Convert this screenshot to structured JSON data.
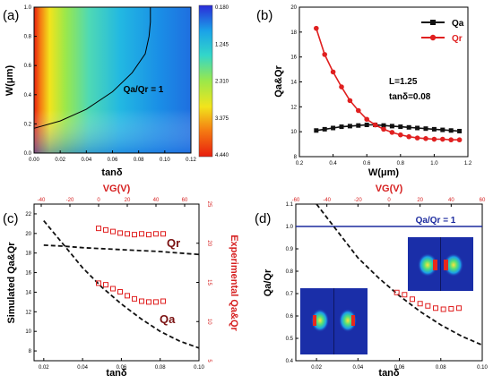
{
  "chart_data": [
    {
      "panel": "(a)",
      "type": "heatmap",
      "xlabel": "tanδ",
      "ylabel": "W(μm)",
      "xlim": [
        0.0,
        0.12
      ],
      "ylim": [
        0.0,
        1.0
      ],
      "xticks": [
        "0.00",
        "0.02",
        "0.04",
        "0.06",
        "0.08",
        "0.10",
        "0.12"
      ],
      "yticks": [
        "0.0",
        "0.2",
        "0.4",
        "0.6",
        "0.8",
        "1.0"
      ],
      "colorbar": {
        "values": [
          "0.180",
          "1.245",
          "2.310",
          "3.375",
          "4.440"
        ],
        "colors": [
          "#2b2bd8",
          "#1aa3e8",
          "#33d6c9",
          "#9be84a",
          "#f2e41c",
          "#f47a12",
          "#e81e0e"
        ]
      },
      "contour": {
        "label": "Qa/Qr = 1",
        "x": [
          0.0,
          0.02,
          0.04,
          0.06,
          0.075,
          0.085,
          0.088,
          0.089,
          0.089
        ],
        "y": [
          0.17,
          0.22,
          0.3,
          0.42,
          0.55,
          0.68,
          0.8,
          0.9,
          1.0
        ]
      },
      "colors": {
        "ui_page_c4": "#ffffff"
      }
    },
    {
      "panel": "(b)",
      "type": "line",
      "xlabel": "W(μm)",
      "ylabel": "Qa&Qr",
      "xlim": [
        0.2,
        1.2
      ],
      "ylim": [
        8,
        20
      ],
      "xticks": [
        "0.2",
        "0.4",
        "0.6",
        "0.8",
        "1.0",
        "1.2"
      ],
      "yticks": [
        "8",
        "10",
        "12",
        "14",
        "16",
        "18",
        "20"
      ],
      "legend_position": "top-right",
      "annotation_l": "L=1.25",
      "annotation_tan": "tanδ=0.08",
      "x": [
        0.3,
        0.35,
        0.4,
        0.45,
        0.5,
        0.55,
        0.6,
        0.65,
        0.7,
        0.75,
        0.8,
        0.85,
        0.9,
        0.95,
        1.0,
        1.05,
        1.1,
        1.15
      ],
      "series": [
        {
          "name": "Qa",
          "color": "#111111",
          "values": [
            10.1,
            10.2,
            10.3,
            10.4,
            10.45,
            10.5,
            10.55,
            10.55,
            10.5,
            10.45,
            10.4,
            10.35,
            10.3,
            10.25,
            10.2,
            10.15,
            10.1,
            10.05
          ]
        },
        {
          "name": "Qr",
          "color": "#e02020",
          "values": [
            18.3,
            16.2,
            14.8,
            13.6,
            12.5,
            11.7,
            11.0,
            10.55,
            10.2,
            9.95,
            9.75,
            9.6,
            9.5,
            9.45,
            9.4,
            9.4,
            9.35,
            9.35
          ]
        }
      ]
    },
    {
      "panel": "(c)",
      "type": "scatter",
      "xlabel": "tanδ",
      "ylabel": "Simulated Qa&Qr",
      "ylabel_right": "Experimental Qa&Qr",
      "top_xlabel": "VG(V)",
      "xlim": [
        0.015,
        0.1
      ],
      "ylim": [
        7,
        23
      ],
      "ylim_right": [
        5,
        25
      ],
      "top_xlim": [
        -45,
        70
      ],
      "xticks": [
        "0.02",
        "0.04",
        "0.06",
        "0.08",
        "0.10"
      ],
      "yticks": [
        "8",
        "10",
        "12",
        "14",
        "16",
        "18",
        "20",
        "22"
      ],
      "yticks_right": [
        "5",
        "10",
        "15",
        "20",
        "25"
      ],
      "top_xticks": [
        "-40",
        "-20",
        "0",
        "20",
        "40",
        "60"
      ],
      "qr_label": "Qr",
      "qa_label": "Qa",
      "sim_qr": {
        "x": [
          0.02,
          0.03,
          0.04,
          0.05,
          0.06,
          0.07,
          0.08,
          0.09,
          0.1
        ],
        "y": [
          18.8,
          18.7,
          18.55,
          18.45,
          18.35,
          18.25,
          18.15,
          18.0,
          17.85
        ]
      },
      "sim_qa": {
        "x": [
          0.02,
          0.03,
          0.04,
          0.05,
          0.06,
          0.07,
          0.08,
          0.09,
          0.1
        ],
        "y": [
          21.3,
          18.9,
          16.5,
          14.5,
          12.8,
          11.3,
          10.0,
          9.0,
          8.3
        ]
      },
      "exp_qr": {
        "vg": [
          0,
          5,
          10,
          15,
          20,
          25,
          30,
          35,
          40,
          45
        ],
        "values": [
          21.9,
          21.7,
          21.5,
          21.3,
          21.2,
          21.1,
          21.2,
          21.1,
          21.2,
          21.2
        ]
      },
      "exp_qa": {
        "vg": [
          0,
          5,
          10,
          15,
          20,
          25,
          30,
          35,
          40,
          45
        ],
        "values": [
          14.9,
          14.7,
          14.2,
          13.8,
          13.3,
          12.9,
          12.6,
          12.5,
          12.5,
          12.6
        ]
      }
    },
    {
      "panel": "(d)",
      "type": "scatter",
      "xlabel": "tanδ",
      "ylabel": "Qa/Qr",
      "top_xlabel": "VG(V)",
      "xlim": [
        0.01,
        0.1
      ],
      "ylim": [
        0.4,
        1.1
      ],
      "top_xlim": [
        -60,
        60
      ],
      "xticks": [
        "0.02",
        "0.04",
        "0.06",
        "0.08",
        "0.10"
      ],
      "yticks": [
        "0.4",
        "0.5",
        "0.6",
        "0.7",
        "0.8",
        "0.9",
        "1.0",
        "1.1"
      ],
      "top_xticks": [
        "-60",
        "-40",
        "-20",
        "0",
        "20",
        "40",
        "60"
      ],
      "hline_label": "Qa/Qr = 1",
      "hline_value": 1.0,
      "hline_color": "#1b2a9e",
      "sim": {
        "x": [
          0.02,
          0.03,
          0.04,
          0.05,
          0.06,
          0.07,
          0.08,
          0.09,
          0.1
        ],
        "y": [
          1.12,
          0.98,
          0.86,
          0.77,
          0.69,
          0.62,
          0.56,
          0.51,
          0.47
        ]
      },
      "exp": {
        "vg": [
          5,
          10,
          15,
          20,
          25,
          30,
          35,
          40,
          45
        ],
        "values": [
          0.705,
          0.695,
          0.675,
          0.655,
          0.645,
          0.635,
          0.63,
          0.632,
          0.635
        ]
      }
    }
  ]
}
